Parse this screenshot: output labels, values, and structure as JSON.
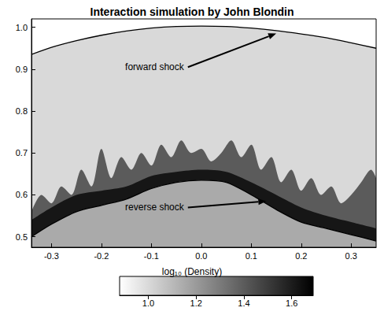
{
  "chart_data": {
    "type": "area",
    "title": "Interaction simulation by John Blondin",
    "xlim": [
      -0.34,
      0.35
    ],
    "xticks": [
      -0.3,
      -0.2,
      -0.1,
      {
        "value": 0,
        "label": "0.0"
      },
      0.1,
      0.2,
      0.3
    ],
    "ylim": [
      0.475,
      1.02
    ],
    "yticks": [
      0.5,
      0.6,
      0.7,
      0.8,
      0.9,
      {
        "value": 1,
        "label": "1.0"
      }
    ],
    "grid": false,
    "series": [
      {
        "line_style": "solid",
        "density": 1.0,
        "x": [
          -0.34,
          -0.3,
          -0.25,
          -0.2,
          -0.15,
          -0.1,
          -0.05,
          0,
          0.05,
          0.1,
          0.15,
          0.2,
          0.25,
          0.3,
          0.35
        ],
        "values": [
          0.935,
          0.952,
          0.968,
          0.981,
          0.991,
          0.998,
          1.002,
          1.003,
          1.002,
          0.998,
          0.992,
          0.984,
          0.975,
          0.963,
          0.95
        ]
      },
      {
        "line_style": "none",
        "density": 1.4,
        "x": [
          -0.34,
          -0.32,
          -0.3,
          -0.28,
          -0.26,
          -0.24,
          -0.22,
          -0.2,
          -0.18,
          -0.16,
          -0.14,
          -0.12,
          -0.1,
          -0.08,
          -0.06,
          -0.04,
          -0.02,
          0,
          0.02,
          0.04,
          0.06,
          0.08,
          0.1,
          0.12,
          0.14,
          0.16,
          0.18,
          0.2,
          0.22,
          0.24,
          0.26,
          0.28,
          0.3,
          0.32,
          0.34,
          0.35
        ],
        "values": [
          0.56,
          0.6,
          0.58,
          0.62,
          0.6,
          0.66,
          0.62,
          0.71,
          0.64,
          0.69,
          0.66,
          0.7,
          0.67,
          0.72,
          0.69,
          0.73,
          0.7,
          0.71,
          0.68,
          0.7,
          0.73,
          0.69,
          0.72,
          0.66,
          0.69,
          0.63,
          0.66,
          0.61,
          0.64,
          0.6,
          0.62,
          0.58,
          0.6,
          0.63,
          0.66,
          0.64
        ]
      },
      {
        "line_style": "none",
        "density": 1.62,
        "x": [
          -0.34,
          -0.3,
          -0.25,
          -0.2,
          -0.15,
          -0.1,
          -0.05,
          0,
          0.05,
          0.1,
          0.15,
          0.2,
          0.25,
          0.3,
          0.35
        ],
        "values": [
          0.54,
          0.57,
          0.6,
          0.61,
          0.62,
          0.645,
          0.655,
          0.66,
          0.655,
          0.63,
          0.6,
          0.57,
          0.55,
          0.535,
          0.52
        ]
      },
      {
        "line_style": "solid",
        "density": 1.15,
        "x": [
          -0.34,
          -0.3,
          -0.25,
          -0.2,
          -0.15,
          -0.1,
          -0.05,
          0,
          0.05,
          0.1,
          0.15,
          0.2,
          0.25,
          0.3,
          0.35
        ],
        "values": [
          0.5,
          0.53,
          0.56,
          0.575,
          0.59,
          0.615,
          0.63,
          0.635,
          0.63,
          0.6,
          0.565,
          0.535,
          0.52,
          0.505,
          0.49
        ]
      }
    ],
    "annotations": [
      {
        "text": "forward shock",
        "x": -0.03,
        "y": 0.905,
        "arrow_x": 0.15,
        "arrow_y": 0.985
      },
      {
        "text": "reverse shock",
        "x": -0.03,
        "y": 0.57,
        "arrow_x": 0.13,
        "arrow_y": 0.585
      }
    ],
    "colorbar": {
      "label": "log₁₀ (Density)",
      "range": [
        0.88,
        1.69
      ],
      "ticks": [
        {
          "value": 1,
          "label": "1.0"
        },
        1.2,
        1.4,
        1.6
      ]
    }
  }
}
